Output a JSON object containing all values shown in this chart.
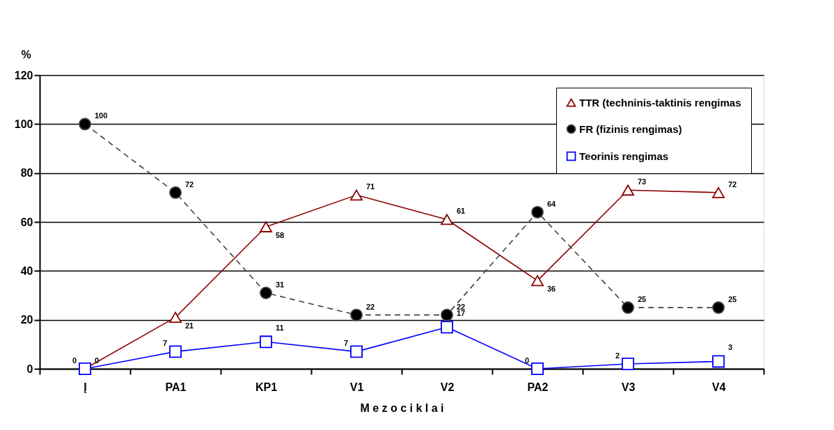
{
  "chart_data": {
    "type": "line",
    "xlabel": "M e z o c i k l a i",
    "ylabel": "%",
    "categories": [
      "Į",
      "PA1",
      "KP1",
      "V1",
      "V2",
      "PA2",
      "V3",
      "V4"
    ],
    "series": [
      {
        "name": "TTR (techninis-taktinis rengimas",
        "color": "#8b0000",
        "marker": "triangle",
        "line_style": "solid",
        "values": [
          0,
          21,
          58,
          71,
          61,
          36,
          73,
          72
        ]
      },
      {
        "name": "FR (fizinis rengimas)",
        "color": "#404040",
        "marker": "circle",
        "line_style": "dashed",
        "values": [
          100,
          72,
          31,
          22,
          22,
          64,
          25,
          25
        ]
      },
      {
        "name": "Teorinis rengimas",
        "color": "#0000ff",
        "marker": "square",
        "line_style": "solid",
        "values": [
          0,
          7,
          11,
          7,
          17,
          0,
          2,
          3
        ]
      }
    ],
    "ylim": [
      0,
      120
    ],
    "yticks": [
      0,
      20,
      40,
      60,
      80,
      100,
      120
    ],
    "grid": "y",
    "legend": "top right",
    "data_labels": true
  }
}
